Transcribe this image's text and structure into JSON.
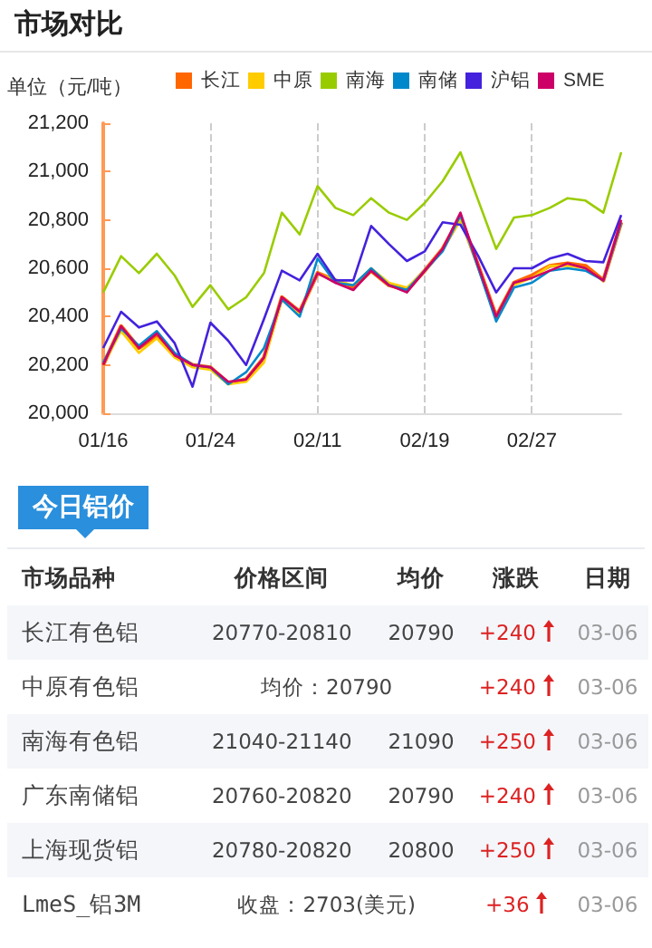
{
  "chart_data": [
    {
      "type": "line",
      "title": "市场对比",
      "ylabel": "单位（元/吨）",
      "categories": [
        "01/16",
        null,
        null,
        null,
        null,
        null,
        "01/24",
        null,
        null,
        null,
        null,
        null,
        "02/11",
        null,
        null,
        null,
        null,
        null,
        "02/19",
        null,
        null,
        null,
        null,
        null,
        "02/27",
        null,
        null,
        null,
        null,
        null
      ],
      "ylim": [
        20000,
        21200
      ],
      "yticks": [
        {
          "value": 20000,
          "label": "20,000"
        },
        {
          "value": 20200,
          "label": "20,200"
        },
        {
          "value": 20400,
          "label": "20,400"
        },
        {
          "value": 20600,
          "label": "20,600"
        },
        {
          "value": 20800,
          "label": "20,800"
        },
        {
          "value": 21000,
          "label": "21,000"
        },
        {
          "value": 21200,
          "label": "21,200"
        }
      ],
      "grid": "x",
      "legend": "top",
      "marker": "none",
      "line_style": "solid",
      "series": [
        {
          "name": "长江",
          "color": "#ff6600",
          "values": [
            20200,
            20360,
            20270,
            20320,
            20240,
            20200,
            20190,
            20125,
            20140,
            20230,
            20480,
            20420,
            20580,
            20550,
            20520,
            20590,
            20530,
            20510,
            20590,
            20680,
            20810,
            20610,
            20400,
            20540,
            20570,
            20610,
            20620,
            20610,
            20550,
            20790
          ]
        },
        {
          "name": "中原",
          "color": "#ffcc00",
          "values": [
            20200,
            20340,
            20250,
            20310,
            20230,
            20190,
            20180,
            20120,
            20130,
            20210,
            20470,
            20410,
            20580,
            20550,
            20530,
            20600,
            20540,
            20520,
            20590,
            20680,
            20800,
            20610,
            20400,
            20530,
            20560,
            20610,
            20610,
            20600,
            20550,
            20790
          ]
        },
        {
          "name": "南海",
          "color": "#99cc00",
          "values": [
            20500,
            20650,
            20580,
            20660,
            20570,
            20440,
            20530,
            20430,
            20480,
            20580,
            20830,
            20740,
            20940,
            20850,
            20820,
            20890,
            20830,
            20800,
            20870,
            20960,
            21080,
            20880,
            20680,
            20810,
            20820,
            20850,
            20890,
            20880,
            20830,
            21080
          ]
        },
        {
          "name": "南储",
          "color": "#0088cc",
          "values": [
            20210,
            20350,
            20280,
            20340,
            20250,
            20200,
            20190,
            20120,
            20170,
            20270,
            20470,
            20400,
            20640,
            20540,
            20530,
            20600,
            20530,
            20510,
            20590,
            20670,
            20820,
            20600,
            20380,
            20520,
            20540,
            20590,
            20600,
            20590,
            20550,
            20790
          ]
        },
        {
          "name": "沪铝",
          "color": "#4422dd",
          "values": [
            20270,
            20420,
            20355,
            20380,
            20290,
            20110,
            20375,
            20300,
            20200,
            20390,
            20590,
            20550,
            20660,
            20550,
            20550,
            20775,
            20700,
            20630,
            20670,
            20790,
            20780,
            20650,
            20500,
            20600,
            20600,
            20640,
            20660,
            20630,
            20625,
            20820
          ]
        },
        {
          "name": "SME",
          "color": "#cc0066",
          "values": [
            20200,
            20360,
            20270,
            20330,
            20240,
            20200,
            20190,
            20130,
            20140,
            20230,
            20480,
            20420,
            20580,
            20540,
            20510,
            20590,
            20530,
            20500,
            20590,
            20680,
            20830,
            20610,
            20400,
            20540,
            20560,
            20590,
            20620,
            20600,
            20550,
            20800
          ]
        }
      ]
    },
    {
      "type": "other",
      "title": "今日铝价",
      "categories": [
        "市场品种",
        "价格区间",
        "均价",
        "涨跌",
        "日期"
      ],
      "y_categories": [
        "长江有色铝",
        "中原有色铝",
        "南海有色铝",
        "广东南储铝",
        "上海现货铝",
        "LmeS_铝3M"
      ],
      "cell_labels": [
        [
          "20770-20810",
          "20790",
          "+240",
          "03-06"
        ],
        [
          "均价：20790",
          null,
          "+240",
          "03-06"
        ],
        [
          "21040-21140",
          "21090",
          "+250",
          "03-06"
        ],
        [
          "20760-20820",
          "20790",
          "+240",
          "03-06"
        ],
        [
          "20780-20820",
          "20800",
          "+250",
          "03-06"
        ],
        [
          "收盘：2703(美元)",
          null,
          "+36",
          "03-06"
        ]
      ]
    }
  ]
}
